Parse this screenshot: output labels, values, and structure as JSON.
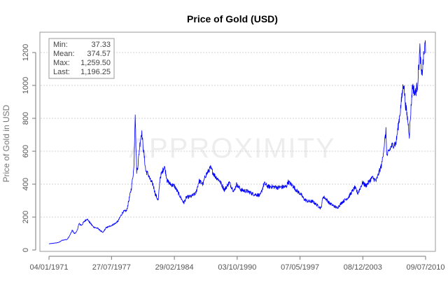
{
  "chart_data": {
    "type": "line",
    "title": "Price of Gold (USD)",
    "xlabel": "",
    "ylabel": "Price of Gold in USD",
    "ylim": [
      0,
      1300
    ],
    "xlim": [
      "1971-01-04",
      "2010-07-09"
    ],
    "grid": "horizontal",
    "color": "#0000ff",
    "y_ticks": [
      0,
      200,
      400,
      600,
      800,
      1000,
      1200
    ],
    "x_ticks": [
      "04/01/1971",
      "27/07/1977",
      "29/02/1984",
      "03/10/1990",
      "07/05/1997",
      "08/12/2003",
      "09/07/2010"
    ],
    "stats_box": {
      "position": "top-left",
      "rows": [
        {
          "label": "Min:",
          "value": "37.33"
        },
        {
          "label": "Mean:",
          "value": "374.57"
        },
        {
          "label": "Max:",
          "value": "1,259.50"
        },
        {
          "label": "Last:",
          "value": "1,196.25"
        }
      ]
    },
    "watermark": "APPROXIMITY",
    "series": [
      {
        "points": [
          [
            "1971-01-04",
            37.3
          ],
          [
            "1971-08-15",
            42
          ],
          [
            "1972-01-01",
            45
          ],
          [
            "1972-06-01",
            60
          ],
          [
            "1972-12-01",
            64
          ],
          [
            "1973-03-01",
            85
          ],
          [
            "1973-06-15",
            120
          ],
          [
            "1973-09-01",
            100
          ],
          [
            "1973-12-01",
            110
          ],
          [
            "1974-03-01",
            160
          ],
          [
            "1974-06-01",
            150
          ],
          [
            "1974-09-01",
            170
          ],
          [
            "1974-12-30",
            190
          ],
          [
            "1975-04-01",
            170
          ],
          [
            "1975-09-01",
            140
          ],
          [
            "1976-03-01",
            130
          ],
          [
            "1976-08-25",
            105
          ],
          [
            "1977-01-01",
            135
          ],
          [
            "1977-06-01",
            145
          ],
          [
            "1977-12-01",
            160
          ],
          [
            "1978-04-01",
            175
          ],
          [
            "1978-10-01",
            230
          ],
          [
            "1979-03-01",
            240
          ],
          [
            "1979-09-01",
            380
          ],
          [
            "1979-12-01",
            500
          ],
          [
            "1980-01-21",
            845
          ],
          [
            "1980-02-15",
            650
          ],
          [
            "1980-03-17",
            480
          ],
          [
            "1980-05-01",
            510
          ],
          [
            "1980-07-15",
            640
          ],
          [
            "1980-09-22",
            720
          ],
          [
            "1980-12-15",
            590
          ],
          [
            "1981-03-01",
            480
          ],
          [
            "1981-06-01",
            460
          ],
          [
            "1981-09-01",
            420
          ],
          [
            "1981-12-01",
            400
          ],
          [
            "1982-03-01",
            340
          ],
          [
            "1982-06-21",
            300
          ],
          [
            "1982-09-01",
            440
          ],
          [
            "1983-02-15",
            510
          ],
          [
            "1983-06-01",
            420
          ],
          [
            "1983-10-01",
            400
          ],
          [
            "1984-03-01",
            390
          ],
          [
            "1984-08-01",
            345
          ],
          [
            "1985-02-25",
            285
          ],
          [
            "1985-06-01",
            320
          ],
          [
            "1985-12-01",
            325
          ],
          [
            "1986-06-01",
            345
          ],
          [
            "1986-10-01",
            420
          ],
          [
            "1987-03-01",
            400
          ],
          [
            "1987-06-01",
            450
          ],
          [
            "1987-12-14",
            500
          ],
          [
            "1988-06-01",
            450
          ],
          [
            "1988-12-01",
            420
          ],
          [
            "1989-06-01",
            365
          ],
          [
            "1989-12-01",
            410
          ],
          [
            "1990-06-01",
            355
          ],
          [
            "1990-09-01",
            400
          ],
          [
            "1991-03-01",
            365
          ],
          [
            "1991-12-01",
            355
          ],
          [
            "1992-06-01",
            340
          ],
          [
            "1992-12-01",
            335
          ],
          [
            "1993-03-01",
            330
          ],
          [
            "1993-08-01",
            405
          ],
          [
            "1994-01-01",
            385
          ],
          [
            "1994-06-01",
            385
          ],
          [
            "1995-01-01",
            380
          ],
          [
            "1995-12-01",
            385
          ],
          [
            "1996-02-01",
            415
          ],
          [
            "1996-08-01",
            390
          ],
          [
            "1997-01-01",
            360
          ],
          [
            "1997-06-01",
            340
          ],
          [
            "1997-10-01",
            310
          ],
          [
            "1998-03-01",
            295
          ],
          [
            "1998-09-01",
            295
          ],
          [
            "1999-07-20",
            253
          ],
          [
            "1999-10-05",
            325
          ],
          [
            "2000-02-01",
            310
          ],
          [
            "2000-06-01",
            285
          ],
          [
            "2001-04-01",
            255
          ],
          [
            "2001-10-01",
            290
          ],
          [
            "2002-06-01",
            320
          ],
          [
            "2003-02-01",
            380
          ],
          [
            "2003-06-01",
            345
          ],
          [
            "2003-12-01",
            410
          ],
          [
            "2004-04-01",
            390
          ],
          [
            "2004-12-01",
            440
          ],
          [
            "2005-05-01",
            420
          ],
          [
            "2005-12-01",
            520
          ],
          [
            "2006-05-12",
            720
          ],
          [
            "2006-06-14",
            570
          ],
          [
            "2006-12-01",
            630
          ],
          [
            "2007-06-01",
            650
          ],
          [
            "2007-11-08",
            840
          ],
          [
            "2008-03-17",
            1020
          ],
          [
            "2008-06-01",
            880
          ],
          [
            "2008-09-01",
            780
          ],
          [
            "2008-10-24",
            700
          ],
          [
            "2009-02-20",
            1000
          ],
          [
            "2009-06-01",
            950
          ],
          [
            "2009-09-01",
            1000
          ],
          [
            "2009-12-02",
            1220
          ],
          [
            "2010-02-05",
            1050
          ],
          [
            "2010-05-01",
            1180
          ],
          [
            "2010-06-28",
            1259.5
          ],
          [
            "2010-07-09",
            1196.25
          ]
        ]
      }
    ]
  }
}
